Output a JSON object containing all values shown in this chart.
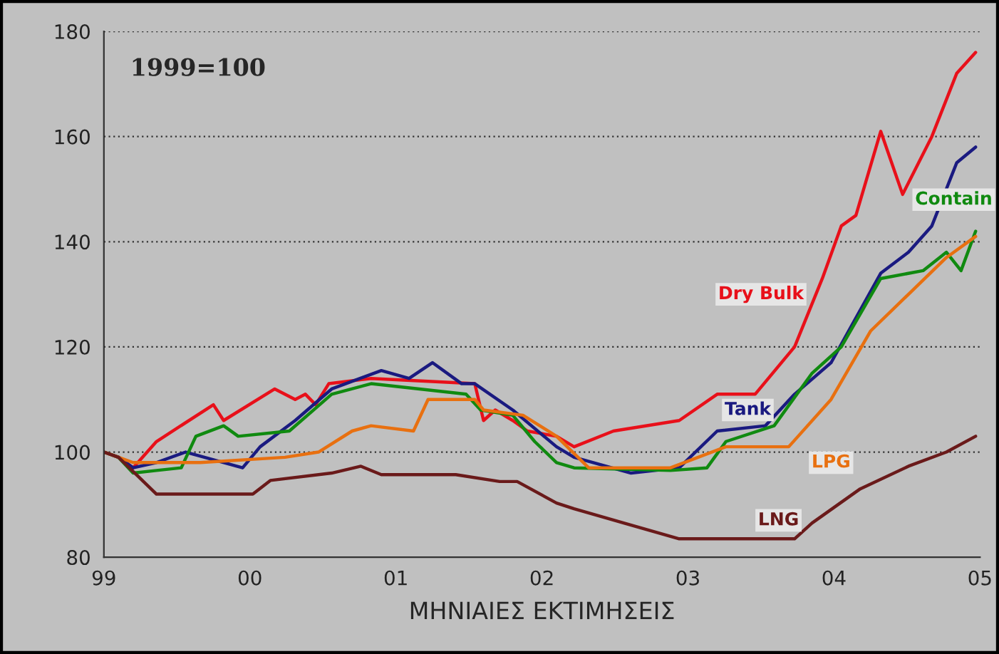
{
  "chart_data": {
    "type": "line",
    "xlabel": "ΜΗΝΙΑΙΕΣ ΕΚΤΙΜΗΣΕΙΣ",
    "xlim": [
      1999,
      2005
    ],
    "xticks": [
      {
        "value": 1999,
        "label": "99"
      },
      {
        "value": 2000,
        "label": "00"
      },
      {
        "value": 2001,
        "label": "01"
      },
      {
        "value": 2002,
        "label": "02"
      },
      {
        "value": 2003,
        "label": "03"
      },
      {
        "value": 2004,
        "label": "04"
      },
      {
        "value": 2005,
        "label": "05"
      }
    ],
    "ylim": [
      80,
      180
    ],
    "yticks": [
      80,
      100,
      120,
      140,
      160,
      180
    ],
    "grid": "y",
    "series": [
      {
        "name": "Dry Bulk",
        "color": "#e8101a",
        "x": [
          1999.0,
          1999.1,
          1999.2,
          1999.36,
          1999.75,
          1999.82,
          2000.17,
          2000.31,
          2000.38,
          2000.45,
          2000.54,
          2000.83,
          2001.54,
          2001.6,
          2001.68,
          2001.8,
          2001.9,
          2002.1,
          2002.22,
          2002.49,
          2002.94,
          2003.2,
          2003.46,
          2003.73,
          2003.92,
          2004.05,
          2004.15,
          2004.32,
          2004.47,
          2004.67,
          2004.84,
          2004.97
        ],
        "values": [
          100,
          99,
          97,
          102,
          109,
          106,
          112,
          110,
          111,
          109,
          113,
          114,
          113,
          106,
          108,
          106,
          104,
          103,
          101,
          104,
          106,
          111,
          111,
          120,
          133,
          143,
          145,
          161,
          149,
          160,
          172,
          176
        ]
      },
      {
        "name": "Tank",
        "color": "#1a1a80",
        "x": [
          1999.0,
          1999.1,
          1999.2,
          1999.36,
          1999.56,
          1999.95,
          2000.07,
          2000.31,
          2000.56,
          2000.9,
          2001.09,
          2001.25,
          2001.45,
          2001.54,
          2001.8,
          2002.1,
          2002.22,
          2002.61,
          2002.94,
          2003.2,
          2003.53,
          2003.73,
          2003.98,
          2004.12,
          2004.32,
          2004.51,
          2004.67,
          2004.84,
          2004.97
        ],
        "values": [
          100,
          99,
          97,
          98,
          100,
          97,
          101,
          106,
          112,
          115.5,
          114,
          117,
          113,
          113,
          108,
          101,
          99,
          96,
          97,
          104,
          105,
          111,
          117,
          124,
          134,
          138,
          143,
          155,
          158
        ]
      },
      {
        "name": "Contain",
        "color": "#108a10",
        "x": [
          1999.0,
          1999.1,
          1999.2,
          1999.36,
          1999.53,
          1999.63,
          1999.82,
          1999.92,
          2000.27,
          2000.56,
          2000.83,
          2001.48,
          2001.58,
          2001.8,
          2001.95,
          2002.1,
          2002.22,
          2002.88,
          2003.13,
          2003.26,
          2003.59,
          2003.85,
          2004.05,
          2004.32,
          2004.61,
          2004.77,
          2004.87,
          2004.97
        ],
        "values": [
          100,
          99,
          96,
          96.5,
          97,
          103,
          105,
          103,
          104,
          111,
          113,
          111,
          108,
          107,
          102,
          98,
          97,
          96.5,
          97,
          102,
          105,
          115,
          120,
          133,
          134.5,
          138,
          134.5,
          142
        ]
      },
      {
        "name": "LPG",
        "color": "#e87010",
        "x": [
          1999.0,
          1999.1,
          1999.2,
          1999.66,
          2000.24,
          2000.47,
          2000.7,
          2000.83,
          2001.12,
          2001.22,
          2001.54,
          2001.6,
          2001.87,
          2002.1,
          2002.32,
          2002.88,
          2003.26,
          2003.69,
          2003.98,
          2004.25,
          2004.51,
          2004.77,
          2004.97
        ],
        "values": [
          100,
          99,
          98,
          98,
          99,
          100,
          104,
          105,
          104,
          110,
          110,
          108,
          107,
          103,
          97,
          97,
          101,
          101,
          110,
          123,
          130,
          137,
          141
        ]
      },
      {
        "name": "LNG",
        "color": "#6a1a1a",
        "x": [
          1999.0,
          1999.1,
          1999.36,
          2000.02,
          2000.14,
          2000.56,
          2000.76,
          2000.9,
          2001.41,
          2001.71,
          2001.83,
          2002.1,
          2002.22,
          2002.56,
          2002.94,
          2003.73,
          2003.85,
          2004.18,
          2004.51,
          2004.77,
          2004.97
        ],
        "values": [
          100,
          99,
          92,
          92,
          94.6,
          96,
          97.3,
          95.7,
          95.7,
          94.4,
          94.4,
          90.3,
          89.2,
          86.5,
          83.5,
          83.5,
          86.5,
          93,
          97.3,
          100,
          103
        ]
      }
    ],
    "annotations": [
      "1999=100"
    ]
  }
}
